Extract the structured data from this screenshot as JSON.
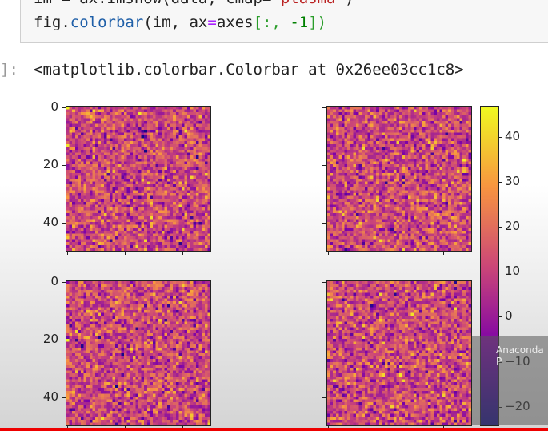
{
  "code": {
    "line1": [
      "im = ax.imshow(data, cmap=",
      "'plasma'",
      ")"
    ],
    "line2": {
      "a": "fig.",
      "b": "colorbar",
      "c": "(im, ax",
      "d": "=",
      "e": "axes",
      "f": "[:, ",
      "g": "-1",
      "h": "])"
    }
  },
  "output": {
    "prompt": "]:",
    "text": "<matplotlib.colorbar.Colorbar at 0x26ee03cc1c8>"
  },
  "overlay": {
    "label": "Anaconda P"
  },
  "chart_data": {
    "type": "heatmap",
    "cmap": "plasma",
    "panels": 4,
    "shape": [
      50,
      50
    ],
    "yticks": [
      "0",
      "20",
      "40"
    ],
    "ytick_values": [
      0,
      20,
      40
    ],
    "colorbar": {
      "ticks": [
        "40",
        "30",
        "20",
        "10",
        "0",
        "−10",
        "−20"
      ],
      "tick_values": [
        40,
        30,
        20,
        10,
        0,
        -10,
        -20
      ],
      "range": [
        -24,
        47
      ]
    },
    "colors": {
      "plasma": [
        "#0d0887",
        "#7e03a8",
        "#cc4778",
        "#f89540",
        "#f0f921"
      ]
    }
  }
}
